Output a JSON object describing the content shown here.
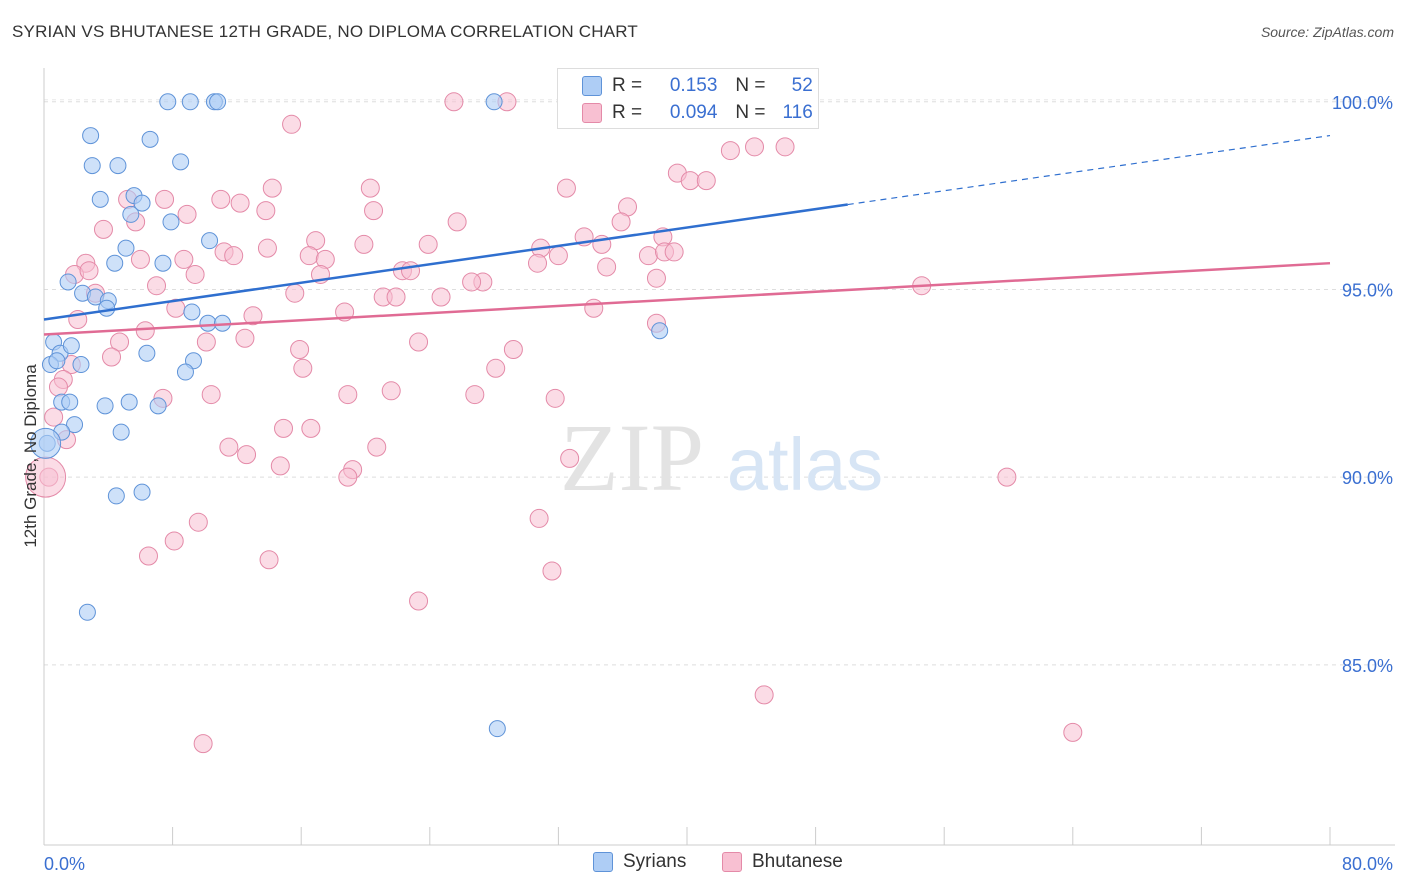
{
  "title": "SYRIAN VS BHUTANESE 12TH GRADE, NO DIPLOMA CORRELATION CHART",
  "source": "Source: ZipAtlas.com",
  "watermark": {
    "zip": "ZIP",
    "atlas": "atlas"
  },
  "legend": {
    "r_label": "R =",
    "n_label": "N =",
    "rows": [
      {
        "r": "0.153",
        "n": "52",
        "color": "#aecdf5"
      },
      {
        "r": "0.094",
        "n": "116",
        "color": "#f8c0d2"
      }
    ]
  },
  "colors": {
    "syrians_fill": "#aecdf5",
    "syrians_stroke": "#5f93d8",
    "syrians_line": "#2f6fcf",
    "bhutanese_fill": "#f8c0d2",
    "bhutanese_stroke": "#e48aa8",
    "bhutanese_line": "#e06b94",
    "tick_label": "#3a6fd1"
  },
  "chart_data": {
    "type": "scatter",
    "title": "SYRIAN VS BHUTANESE 12TH GRADE, NO DIPLOMA CORRELATION CHART",
    "xlabel": "",
    "ylabel": "12th Grade, No Diploma",
    "xlim": [
      0,
      80
    ],
    "ylim": [
      80.2,
      100.9
    ],
    "x_tick_labels": [
      "0.0%",
      "80.0%"
    ],
    "y_ticks": [
      85,
      90,
      95,
      100
    ],
    "y_tick_labels": [
      "85.0%",
      "90.0%",
      "95.0%",
      "100.0%"
    ],
    "grid": true,
    "legend_position": "bottom-center",
    "series": [
      {
        "name": "Syrians",
        "r": 0.153,
        "n": 52,
        "trend": {
          "x0": 0,
          "y0": 94.2,
          "x1": 80,
          "y1": 99.1,
          "solid_until_x": 50
        },
        "points": [
          [
            7.7,
            100.0
          ],
          [
            9.1,
            100.0
          ],
          [
            10.6,
            100.0
          ],
          [
            10.8,
            100.0
          ],
          [
            28.0,
            100.0
          ],
          [
            47.2,
            100.0
          ],
          [
            2.9,
            99.1
          ],
          [
            6.6,
            99.0
          ],
          [
            3.0,
            98.3
          ],
          [
            4.6,
            98.3
          ],
          [
            8.5,
            98.4
          ],
          [
            3.5,
            97.4
          ],
          [
            5.6,
            97.5
          ],
          [
            6.1,
            97.3
          ],
          [
            5.4,
            97.0
          ],
          [
            7.9,
            96.8
          ],
          [
            10.3,
            96.3
          ],
          [
            5.1,
            96.1
          ],
          [
            4.4,
            95.7
          ],
          [
            7.4,
            95.7
          ],
          [
            1.5,
            95.2
          ],
          [
            2.4,
            94.9
          ],
          [
            3.2,
            94.8
          ],
          [
            4.0,
            94.7
          ],
          [
            3.9,
            94.5
          ],
          [
            9.2,
            94.4
          ],
          [
            10.2,
            94.1
          ],
          [
            11.1,
            94.1
          ],
          [
            38.3,
            93.9
          ],
          [
            0.6,
            93.6
          ],
          [
            1.0,
            93.3
          ],
          [
            1.7,
            93.5
          ],
          [
            6.4,
            93.3
          ],
          [
            0.4,
            93.0
          ],
          [
            0.8,
            93.1
          ],
          [
            2.3,
            93.0
          ],
          [
            9.3,
            93.1
          ],
          [
            8.8,
            92.8
          ],
          [
            1.1,
            92.0
          ],
          [
            1.6,
            92.0
          ],
          [
            3.8,
            91.9
          ],
          [
            5.3,
            92.0
          ],
          [
            7.1,
            91.9
          ],
          [
            1.9,
            91.4
          ],
          [
            1.1,
            91.2
          ],
          [
            4.8,
            91.2
          ],
          [
            0.2,
            90.9
          ],
          [
            4.5,
            89.5
          ],
          [
            6.1,
            89.6
          ],
          [
            2.7,
            86.4
          ],
          [
            28.2,
            83.3
          ]
        ]
      },
      {
        "name": "Bhutanese",
        "r": 0.094,
        "n": 116,
        "trend": {
          "x0": 0,
          "y0": 93.8,
          "x1": 80,
          "y1": 95.7
        },
        "points": [
          [
            25.5,
            100.0
          ],
          [
            28.8,
            100.0
          ],
          [
            15.4,
            99.4
          ],
          [
            42.7,
            98.7
          ],
          [
            44.2,
            98.8
          ],
          [
            46.1,
            98.8
          ],
          [
            39.4,
            98.1
          ],
          [
            40.2,
            97.9
          ],
          [
            41.2,
            97.9
          ],
          [
            14.2,
            97.7
          ],
          [
            20.3,
            97.7
          ],
          [
            32.5,
            97.7
          ],
          [
            5.2,
            97.4
          ],
          [
            7.5,
            97.4
          ],
          [
            11.0,
            97.4
          ],
          [
            12.2,
            97.3
          ],
          [
            13.8,
            97.1
          ],
          [
            8.9,
            97.0
          ],
          [
            20.5,
            97.1
          ],
          [
            36.3,
            97.2
          ],
          [
            5.7,
            96.8
          ],
          [
            3.7,
            96.6
          ],
          [
            25.7,
            96.8
          ],
          [
            35.9,
            96.8
          ],
          [
            38.5,
            96.4
          ],
          [
            33.6,
            96.4
          ],
          [
            34.7,
            96.2
          ],
          [
            16.9,
            96.3
          ],
          [
            19.9,
            96.2
          ],
          [
            23.9,
            96.2
          ],
          [
            30.9,
            96.1
          ],
          [
            13.9,
            96.1
          ],
          [
            11.2,
            96.0
          ],
          [
            11.8,
            95.9
          ],
          [
            16.5,
            95.9
          ],
          [
            17.5,
            95.8
          ],
          [
            37.6,
            95.9
          ],
          [
            38.6,
            96.0
          ],
          [
            39.2,
            96.0
          ],
          [
            2.6,
            95.7
          ],
          [
            6.0,
            95.8
          ],
          [
            8.7,
            95.8
          ],
          [
            32.0,
            95.9
          ],
          [
            30.7,
            95.7
          ],
          [
            35.0,
            95.6
          ],
          [
            1.9,
            95.4
          ],
          [
            2.8,
            95.5
          ],
          [
            9.4,
            95.4
          ],
          [
            17.2,
            95.4
          ],
          [
            22.3,
            95.5
          ],
          [
            22.8,
            95.5
          ],
          [
            27.3,
            95.2
          ],
          [
            7.0,
            95.1
          ],
          [
            38.1,
            95.3
          ],
          [
            54.6,
            95.1
          ],
          [
            26.6,
            95.2
          ],
          [
            3.2,
            94.9
          ],
          [
            15.6,
            94.9
          ],
          [
            21.1,
            94.8
          ],
          [
            21.9,
            94.8
          ],
          [
            24.7,
            94.8
          ],
          [
            34.2,
            94.5
          ],
          [
            8.2,
            94.5
          ],
          [
            13.0,
            94.3
          ],
          [
            18.7,
            94.4
          ],
          [
            2.1,
            94.2
          ],
          [
            38.1,
            94.1
          ],
          [
            6.3,
            93.9
          ],
          [
            10.1,
            93.6
          ],
          [
            12.5,
            93.7
          ],
          [
            4.7,
            93.6
          ],
          [
            23.3,
            93.6
          ],
          [
            29.2,
            93.4
          ],
          [
            15.9,
            93.4
          ],
          [
            4.2,
            93.2
          ],
          [
            1.7,
            93.0
          ],
          [
            28.1,
            92.9
          ],
          [
            16.1,
            92.9
          ],
          [
            1.2,
            92.6
          ],
          [
            0.9,
            92.4
          ],
          [
            10.4,
            92.2
          ],
          [
            7.4,
            92.1
          ],
          [
            18.9,
            92.2
          ],
          [
            21.6,
            92.3
          ],
          [
            26.8,
            92.2
          ],
          [
            31.8,
            92.1
          ],
          [
            0.6,
            91.6
          ],
          [
            14.9,
            91.3
          ],
          [
            16.6,
            91.3
          ],
          [
            1.4,
            91.0
          ],
          [
            11.5,
            90.8
          ],
          [
            12.6,
            90.6
          ],
          [
            20.7,
            90.8
          ],
          [
            14.7,
            90.3
          ],
          [
            19.2,
            90.2
          ],
          [
            18.9,
            90.0
          ],
          [
            32.7,
            90.5
          ],
          [
            0.3,
            90.0
          ],
          [
            59.9,
            90.0
          ],
          [
            30.8,
            88.9
          ],
          [
            9.6,
            88.8
          ],
          [
            8.1,
            88.3
          ],
          [
            6.5,
            87.9
          ],
          [
            14.0,
            87.8
          ],
          [
            31.6,
            87.5
          ],
          [
            23.3,
            86.7
          ],
          [
            44.8,
            84.2
          ],
          [
            64.0,
            83.2
          ],
          [
            9.9,
            82.9
          ]
        ]
      }
    ]
  }
}
